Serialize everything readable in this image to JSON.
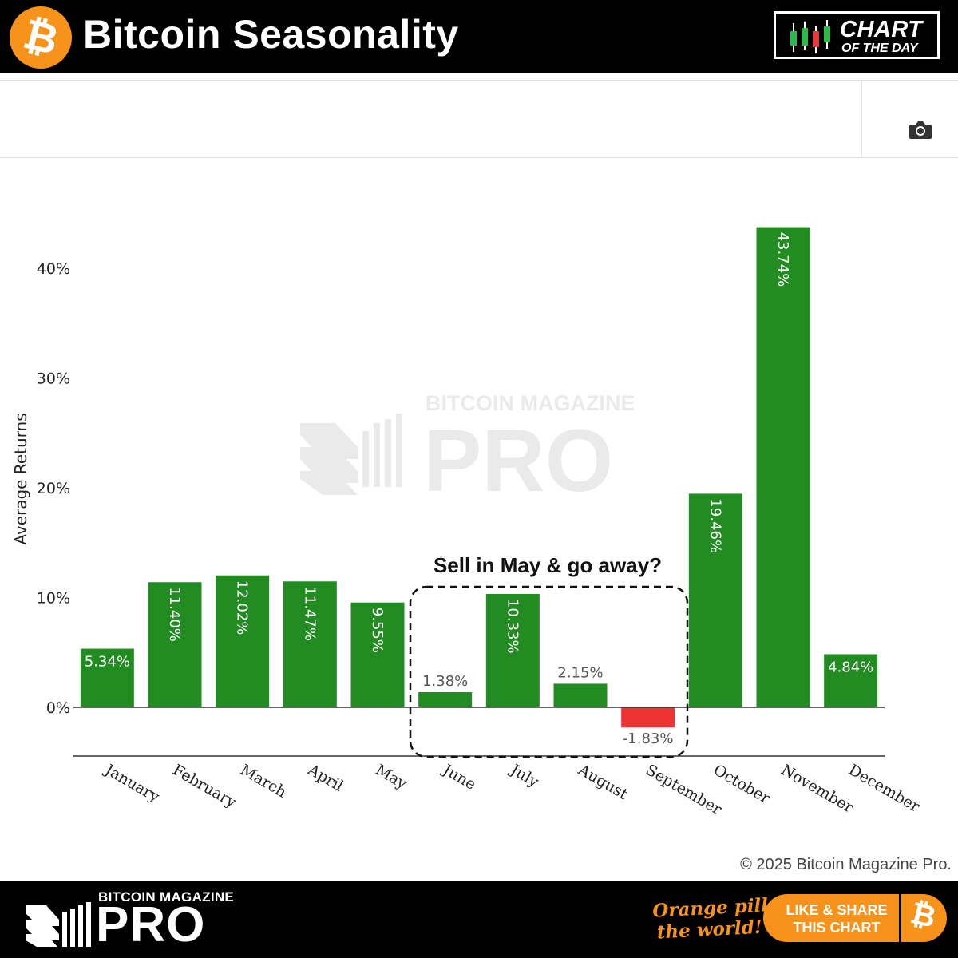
{
  "header": {
    "title": "Bitcoin Seasonality",
    "logo_glyph": "₿",
    "badge_line1": "CHART",
    "badge_line2": "OF THE DAY"
  },
  "toolbar": {
    "camera_icon": "camera-icon"
  },
  "colors": {
    "positive": "#228b22",
    "negative": "#ee3333",
    "brand_orange": "#f7931a",
    "header_bg": "#000000"
  },
  "chart_data": {
    "type": "bar",
    "ylabel": "Average Returns",
    "categories": [
      "January",
      "February",
      "March",
      "April",
      "May",
      "June",
      "July",
      "August",
      "September",
      "October",
      "November",
      "December"
    ],
    "values": [
      5.34,
      11.4,
      12.02,
      11.47,
      9.55,
      1.38,
      10.33,
      2.15,
      -1.83,
      19.46,
      43.74,
      4.84
    ],
    "value_labels": [
      "5.34%",
      "11.40%",
      "12.02%",
      "11.47%",
      "9.55%",
      "1.38%",
      "10.33%",
      "2.15%",
      "-1.83%",
      "19.46%",
      "43.74%",
      "4.84%"
    ],
    "yticks": [
      0,
      10,
      20,
      30,
      40
    ],
    "ytick_labels": [
      "0%",
      "10%",
      "20%",
      "30%",
      "40%"
    ],
    "ylim": [
      -4.4,
      47.5
    ],
    "grid": false,
    "annotation": "Sell in May & go away?",
    "watermark_line1": "BITCOIN MAGAZINE",
    "watermark_line2": "PRO"
  },
  "copyright": "© 2025 Bitcoin Magazine Pro.",
  "footer": {
    "brand_small": "BITCOIN MAGAZINE",
    "brand_large": "PRO",
    "slogan_line1": "Orange pill",
    "slogan_line2": "the world!",
    "share_line1": "LIKE & SHARE",
    "share_line2": "THIS CHART",
    "share_glyph": "₿"
  }
}
